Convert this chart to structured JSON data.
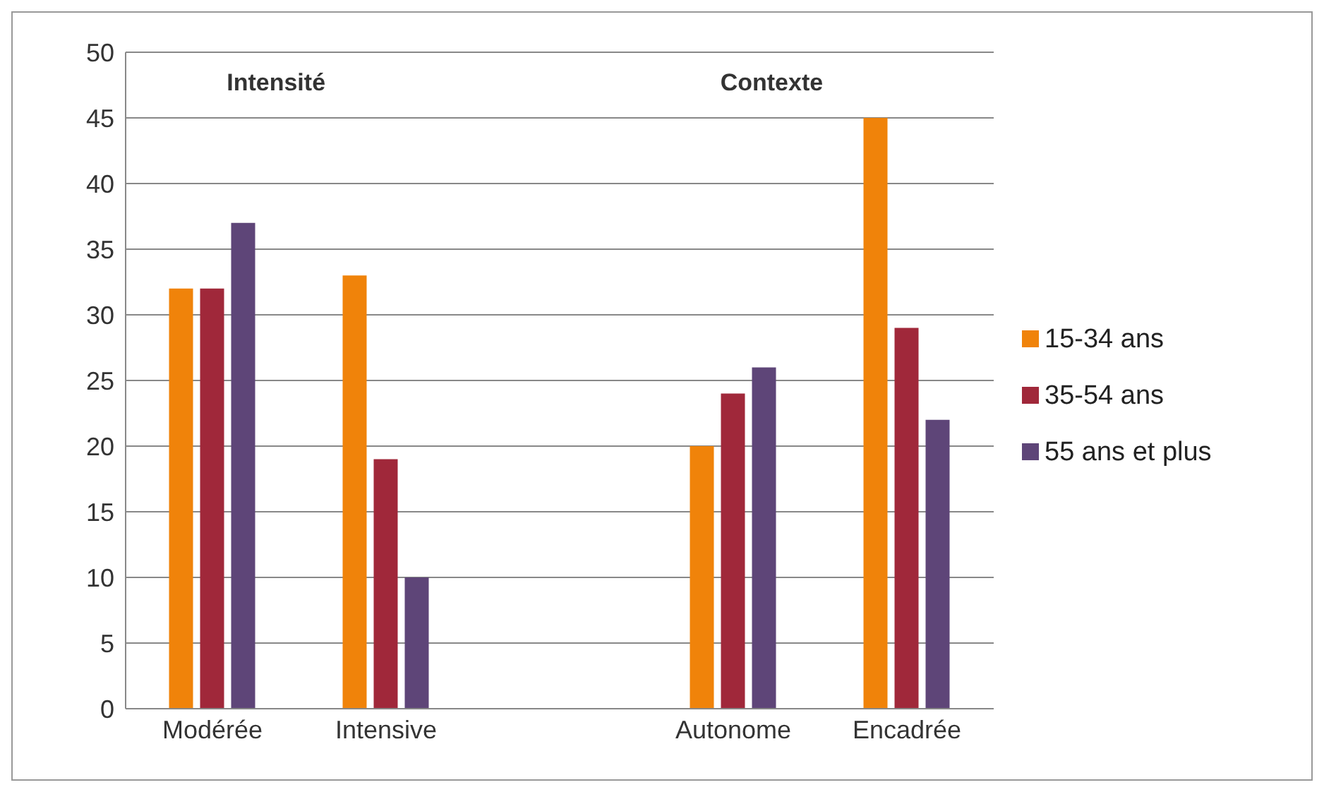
{
  "chart_data": {
    "type": "bar",
    "categories": [
      "Modérée",
      "Intensive",
      null,
      "Autonome",
      "Encadrée"
    ],
    "series": [
      {
        "name": "15-34 ans",
        "color": "#f0830a",
        "values": [
          32,
          33,
          null,
          20,
          45
        ]
      },
      {
        "name": "35-54 ans",
        "color": "#a0283a",
        "values": [
          32,
          19,
          null,
          24,
          29
        ]
      },
      {
        "name": "55 ans et plus",
        "color": "#5e4578",
        "values": [
          37,
          10,
          null,
          26,
          22
        ]
      }
    ],
    "annotations": [
      "Intensité",
      "Contexte"
    ],
    "ylim": [
      0,
      50
    ],
    "yticks": [
      0,
      5,
      10,
      15,
      20,
      25,
      30,
      35,
      40,
      45,
      50
    ],
    "grid": "y",
    "legend": "right"
  }
}
